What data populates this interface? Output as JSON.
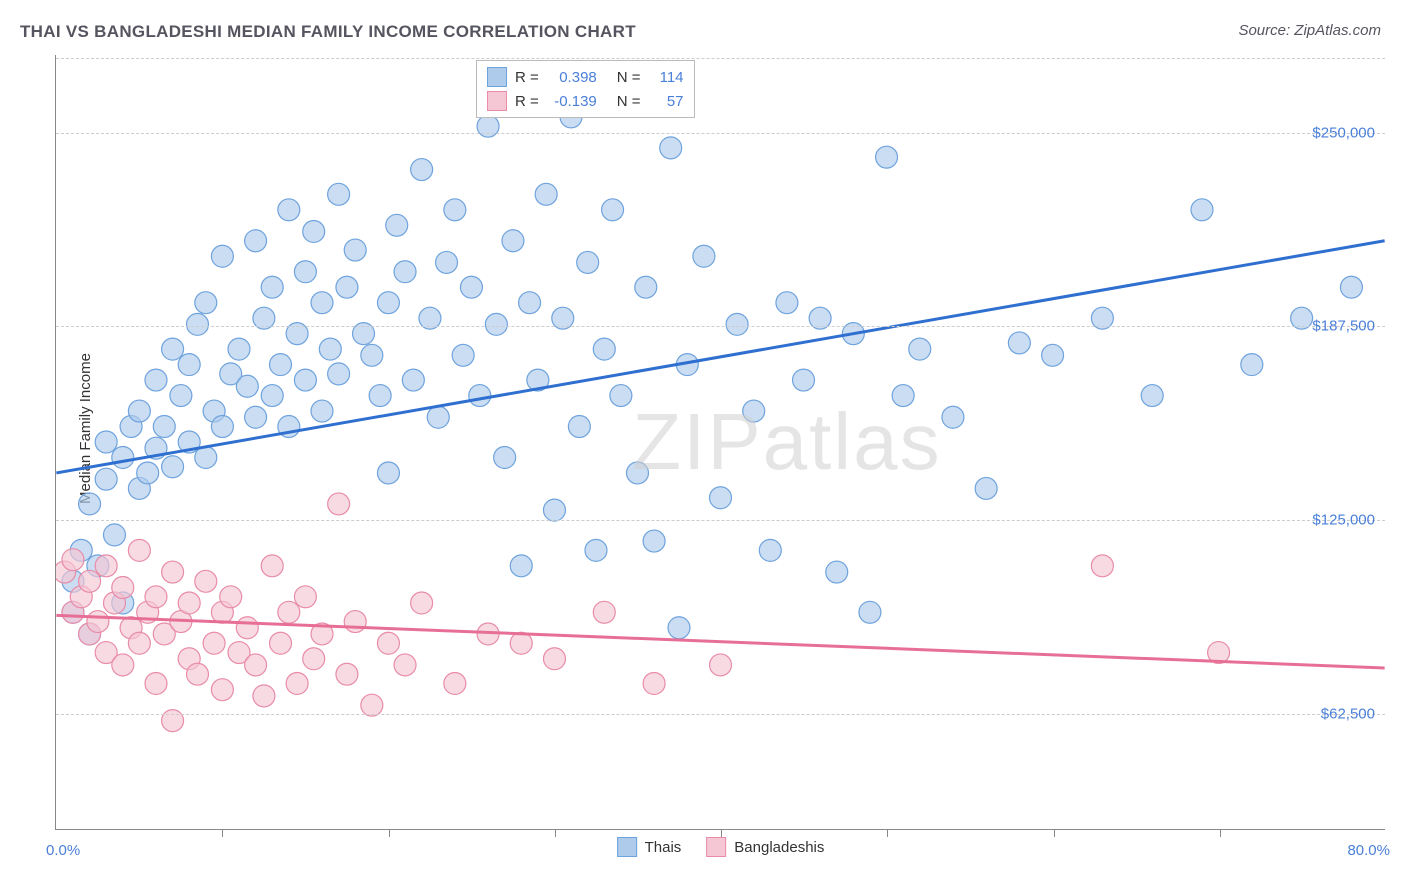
{
  "title": "THAI VS BANGLADESHI MEDIAN FAMILY INCOME CORRELATION CHART",
  "source_label": "Source: ZipAtlas.com",
  "y_axis_label": "Median Family Income",
  "watermark_a": "ZIP",
  "watermark_b": "atlas",
  "chart": {
    "type": "scatter",
    "background_color": "#ffffff",
    "grid_color": "#cccccc",
    "axis_color": "#888888",
    "tick_label_color": "#4a7fd8",
    "x_min": 0.0,
    "x_max": 80.0,
    "x_min_label": "0.0%",
    "x_max_label": "80.0%",
    "x_ticks_pct": [
      10,
      20,
      30,
      40,
      50,
      60,
      70
    ],
    "y_min": 25000,
    "y_max": 275000,
    "y_grid": [
      62500,
      125000,
      187500,
      250000
    ],
    "y_grid_labels": [
      "$62,500",
      "$125,000",
      "$187,500",
      "$250,000"
    ],
    "marker_radius": 11,
    "marker_stroke_width": 1.2,
    "trend_line_width": 3,
    "series": [
      {
        "name": "Thais",
        "fill": "#aecbeb",
        "stroke": "#6fa3dd",
        "line_color": "#2f6fd0",
        "R": "0.398",
        "N": "114",
        "trend": {
          "x1": 0,
          "y1": 140000,
          "x2": 80,
          "y2": 215000
        },
        "points": [
          [
            1,
            95000
          ],
          [
            1,
            105000
          ],
          [
            1.5,
            115000
          ],
          [
            2,
            130000
          ],
          [
            2,
            88000
          ],
          [
            2.5,
            110000
          ],
          [
            3,
            150000
          ],
          [
            3,
            138000
          ],
          [
            3.5,
            120000
          ],
          [
            4,
            145000
          ],
          [
            4,
            98000
          ],
          [
            4.5,
            155000
          ],
          [
            5,
            160000
          ],
          [
            5,
            135000
          ],
          [
            5.5,
            140000
          ],
          [
            6,
            170000
          ],
          [
            6,
            148000
          ],
          [
            6.5,
            155000
          ],
          [
            7,
            180000
          ],
          [
            7,
            142000
          ],
          [
            7.5,
            165000
          ],
          [
            8,
            175000
          ],
          [
            8,
            150000
          ],
          [
            8.5,
            188000
          ],
          [
            9,
            145000
          ],
          [
            9,
            195000
          ],
          [
            9.5,
            160000
          ],
          [
            10,
            210000
          ],
          [
            10,
            155000
          ],
          [
            10.5,
            172000
          ],
          [
            11,
            180000
          ],
          [
            11.5,
            168000
          ],
          [
            12,
            215000
          ],
          [
            12,
            158000
          ],
          [
            12.5,
            190000
          ],
          [
            13,
            200000
          ],
          [
            13,
            165000
          ],
          [
            13.5,
            175000
          ],
          [
            14,
            225000
          ],
          [
            14,
            155000
          ],
          [
            14.5,
            185000
          ],
          [
            15,
            205000
          ],
          [
            15,
            170000
          ],
          [
            15.5,
            218000
          ],
          [
            16,
            160000
          ],
          [
            16,
            195000
          ],
          [
            16.5,
            180000
          ],
          [
            17,
            230000
          ],
          [
            17,
            172000
          ],
          [
            17.5,
            200000
          ],
          [
            18,
            212000
          ],
          [
            18.5,
            185000
          ],
          [
            19,
            178000
          ],
          [
            19.5,
            165000
          ],
          [
            20,
            195000
          ],
          [
            20,
            140000
          ],
          [
            20.5,
            220000
          ],
          [
            21,
            205000
          ],
          [
            21.5,
            170000
          ],
          [
            22,
            238000
          ],
          [
            22.5,
            190000
          ],
          [
            23,
            158000
          ],
          [
            23.5,
            208000
          ],
          [
            24,
            225000
          ],
          [
            24.5,
            178000
          ],
          [
            25,
            200000
          ],
          [
            25.5,
            165000
          ],
          [
            26,
            252000
          ],
          [
            26.5,
            188000
          ],
          [
            27,
            145000
          ],
          [
            27.5,
            215000
          ],
          [
            28,
            110000
          ],
          [
            28.5,
            195000
          ],
          [
            29,
            170000
          ],
          [
            29.5,
            230000
          ],
          [
            30,
            128000
          ],
          [
            30.5,
            190000
          ],
          [
            31,
            255000
          ],
          [
            31.5,
            155000
          ],
          [
            32,
            208000
          ],
          [
            32.5,
            115000
          ],
          [
            33,
            180000
          ],
          [
            33.5,
            225000
          ],
          [
            34,
            165000
          ],
          [
            35,
            140000
          ],
          [
            35.5,
            200000
          ],
          [
            36,
            118000
          ],
          [
            37,
            245000
          ],
          [
            37.5,
            90000
          ],
          [
            38,
            175000
          ],
          [
            39,
            210000
          ],
          [
            40,
            132000
          ],
          [
            41,
            188000
          ],
          [
            42,
            160000
          ],
          [
            43,
            115000
          ],
          [
            44,
            195000
          ],
          [
            45,
            170000
          ],
          [
            46,
            190000
          ],
          [
            47,
            108000
          ],
          [
            48,
            185000
          ],
          [
            49,
            95000
          ],
          [
            50,
            242000
          ],
          [
            51,
            165000
          ],
          [
            52,
            180000
          ],
          [
            54,
            158000
          ],
          [
            56,
            135000
          ],
          [
            58,
            182000
          ],
          [
            60,
            178000
          ],
          [
            63,
            190000
          ],
          [
            66,
            165000
          ],
          [
            69,
            225000
          ],
          [
            72,
            175000
          ],
          [
            75,
            190000
          ],
          [
            78,
            200000
          ]
        ]
      },
      {
        "name": "Bangladeshis",
        "fill": "#f5c6d4",
        "stroke": "#e88ca8",
        "line_color": "#e76f96",
        "R": "-0.139",
        "N": "57",
        "trend": {
          "x1": 0,
          "y1": 94000,
          "x2": 80,
          "y2": 77000
        },
        "points": [
          [
            0.5,
            108000
          ],
          [
            1,
            112000
          ],
          [
            1,
            95000
          ],
          [
            1.5,
            100000
          ],
          [
            2,
            105000
          ],
          [
            2,
            88000
          ],
          [
            2.5,
            92000
          ],
          [
            3,
            110000
          ],
          [
            3,
            82000
          ],
          [
            3.5,
            98000
          ],
          [
            4,
            103000
          ],
          [
            4,
            78000
          ],
          [
            4.5,
            90000
          ],
          [
            5,
            115000
          ],
          [
            5,
            85000
          ],
          [
            5.5,
            95000
          ],
          [
            6,
            100000
          ],
          [
            6,
            72000
          ],
          [
            6.5,
            88000
          ],
          [
            7,
            108000
          ],
          [
            7,
            60000
          ],
          [
            7.5,
            92000
          ],
          [
            8,
            80000
          ],
          [
            8,
            98000
          ],
          [
            8.5,
            75000
          ],
          [
            9,
            105000
          ],
          [
            9.5,
            85000
          ],
          [
            10,
            95000
          ],
          [
            10,
            70000
          ],
          [
            10.5,
            100000
          ],
          [
            11,
            82000
          ],
          [
            11.5,
            90000
          ],
          [
            12,
            78000
          ],
          [
            12.5,
            68000
          ],
          [
            13,
            110000
          ],
          [
            13.5,
            85000
          ],
          [
            14,
            95000
          ],
          [
            14.5,
            72000
          ],
          [
            15,
            100000
          ],
          [
            15.5,
            80000
          ],
          [
            16,
            88000
          ],
          [
            17,
            130000
          ],
          [
            17.5,
            75000
          ],
          [
            18,
            92000
          ],
          [
            19,
            65000
          ],
          [
            20,
            85000
          ],
          [
            21,
            78000
          ],
          [
            22,
            98000
          ],
          [
            24,
            72000
          ],
          [
            26,
            88000
          ],
          [
            28,
            85000
          ],
          [
            30,
            80000
          ],
          [
            33,
            95000
          ],
          [
            36,
            72000
          ],
          [
            40,
            78000
          ],
          [
            63,
            110000
          ],
          [
            70,
            82000
          ]
        ]
      }
    ]
  },
  "stats_labels": {
    "R": "R =",
    "N": "N ="
  }
}
